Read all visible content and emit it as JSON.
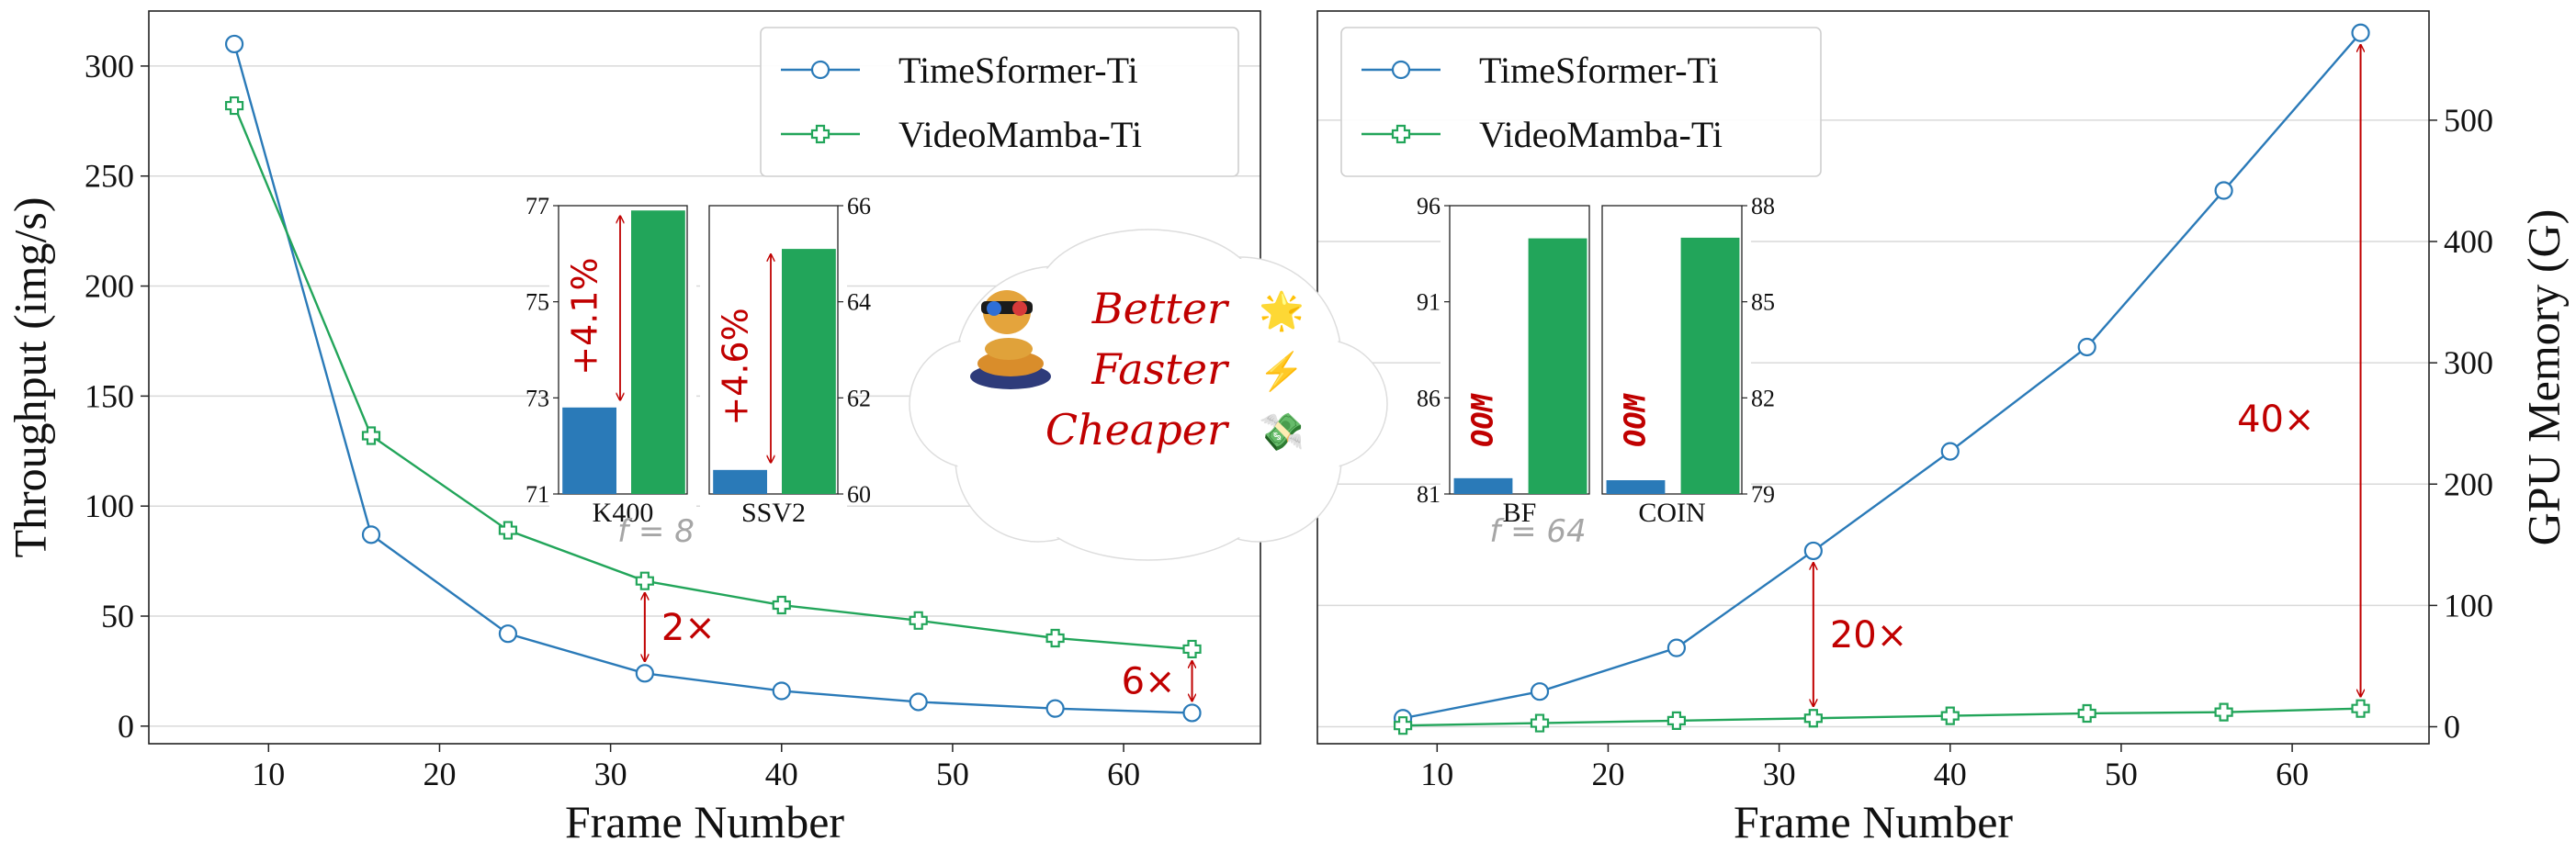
{
  "colors": {
    "timesformer": "#2a7ab8",
    "videomamba": "#22a55a",
    "annotation": "#c00000",
    "grid": "#d9d9d9",
    "fnote": "#a6a6a6"
  },
  "legend": {
    "position": "upper-right"
  },
  "cloud": {
    "lines": [
      {
        "text": "Better",
        "icon": "star-icon",
        "glyph": "🌟"
      },
      {
        "text": "Faster",
        "icon": "lightning-icon",
        "glyph": "⚡"
      },
      {
        "text": "Cheaper",
        "icon": "money-icon",
        "glyph": "💸"
      }
    ],
    "mascot_icon": "snake-mascot-icon"
  },
  "chart_data": [
    {
      "type": "line",
      "xlabel": "Frame Number",
      "ylabel": "Throughput (img/s)",
      "x": [
        8,
        16,
        24,
        32,
        40,
        48,
        56,
        64
      ],
      "xlim": [
        3,
        68
      ],
      "ylim": [
        -8,
        325
      ],
      "xticks": [
        10,
        20,
        30,
        40,
        50,
        60
      ],
      "yticks": [
        0,
        50,
        100,
        150,
        200,
        250,
        300
      ],
      "grid": "horizontal",
      "series": [
        {
          "name": "TimeSformer-Ti",
          "marker": "circle",
          "values": [
            310,
            87,
            42,
            24,
            16,
            11,
            8,
            6
          ]
        },
        {
          "name": "VideoMamba-Ti",
          "marker": "plus",
          "values": [
            282,
            132,
            89,
            66,
            55,
            48,
            40,
            35
          ]
        }
      ],
      "annotations": [
        {
          "text": "2×",
          "x": 32,
          "from": 24,
          "to": 66
        },
        {
          "text": "6×",
          "x": 64,
          "from": 6,
          "to": 35
        }
      ],
      "frame_note": "f = 8",
      "insets": [
        {
          "type": "bar",
          "label": "K400",
          "ylim": [
            71,
            77
          ],
          "yticks": [
            71,
            73,
            75,
            77
          ],
          "yaxis": "left",
          "values": [
            72.8,
            76.9
          ],
          "improvement": "+4.1%"
        },
        {
          "type": "bar",
          "label": "SSV2",
          "ylim": [
            60,
            66
          ],
          "yticks": [
            60,
            62,
            64,
            66
          ],
          "yaxis": "right",
          "values": [
            60.5,
            65.1
          ],
          "improvement": "+4.6%"
        }
      ]
    },
    {
      "type": "line",
      "xlabel": "Frame Number",
      "ylabel": "GPU Memory (G)",
      "x": [
        8,
        16,
        24,
        32,
        40,
        48,
        56,
        64
      ],
      "xlim": [
        3,
        68
      ],
      "ylim": [
        -14,
        590
      ],
      "xticks": [
        10,
        20,
        30,
        40,
        50,
        60
      ],
      "yticks": [
        0,
        100,
        200,
        300,
        400,
        500
      ],
      "grid": "horizontal",
      "series": [
        {
          "name": "TimeSformer-Ti",
          "marker": "circle",
          "values": [
            7,
            29,
            65,
            145,
            227,
            313,
            442,
            572
          ]
        },
        {
          "name": "VideoMamba-Ti",
          "marker": "plus",
          "values": [
            1,
            3,
            5,
            7,
            9,
            11,
            12,
            15
          ]
        }
      ],
      "annotations": [
        {
          "text": "20×",
          "x": 32,
          "from": 7,
          "to": 145
        },
        {
          "text": "40×",
          "x": 64,
          "from": 15,
          "to": 572
        }
      ],
      "frame_note": "f = 64",
      "insets": [
        {
          "type": "bar",
          "label": "BF",
          "ylim": [
            81,
            96
          ],
          "yticks": [
            81,
            86,
            91,
            96
          ],
          "yaxis": "left",
          "values": [
            null,
            94.3
          ],
          "oom": "OOM",
          "stub": 0.12
        },
        {
          "type": "bar",
          "label": "COIN",
          "ylim": [
            79,
            88
          ],
          "yticks": [
            79,
            82,
            85,
            88
          ],
          "yaxis": "right",
          "values": [
            null,
            87.0
          ],
          "oom": "OOM",
          "stub": 0.1
        }
      ]
    }
  ]
}
